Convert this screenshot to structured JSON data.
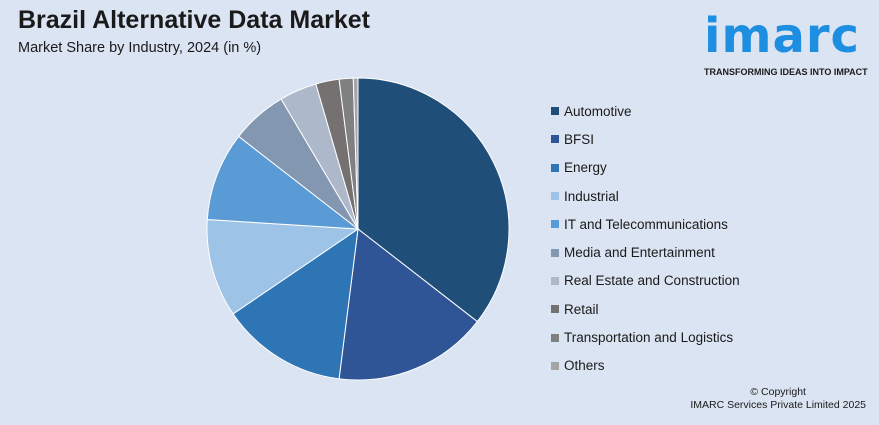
{
  "header": {
    "title": "Brazil Alternative Data Market",
    "subtitle": "Market Share by Industry, 2024 (in %)"
  },
  "logo": {
    "word": "imarc",
    "tagline": "TRANSFORMING IDEAS INTO IMPACT"
  },
  "footer": {
    "copyright_line1": "© Copyright",
    "copyright_line2": "IMARC Services Private Limited 2025"
  },
  "chart_data": {
    "type": "pie",
    "title": "Brazil Alternative Data Market",
    "subtitle": "Market Share by Industry, 2024 (in %)",
    "legend_position": "right",
    "slices": [
      {
        "label": "Automotive",
        "value": 35.5,
        "color": "#1f4e79"
      },
      {
        "label": "BFSI",
        "value": 16.5,
        "color": "#2f5597"
      },
      {
        "label": "Energy",
        "value": 13.5,
        "color": "#2e75b6"
      },
      {
        "label": "Industrial",
        "value": 10.5,
        "color": "#9dc3e6"
      },
      {
        "label": "IT and Telecommunications",
        "value": 9.5,
        "color": "#5b9bd5"
      },
      {
        "label": "Media and Entertainment",
        "value": 6.0,
        "color": "#8497b0"
      },
      {
        "label": "Real Estate and Construction",
        "value": 4.0,
        "color": "#adb9ca"
      },
      {
        "label": "Retail",
        "value": 2.5,
        "color": "#767171"
      },
      {
        "label": "Transportation and Logistics",
        "value": 1.5,
        "color": "#808080"
      },
      {
        "label": "Others",
        "value": 0.5,
        "color": "#a5a5a5"
      }
    ]
  }
}
